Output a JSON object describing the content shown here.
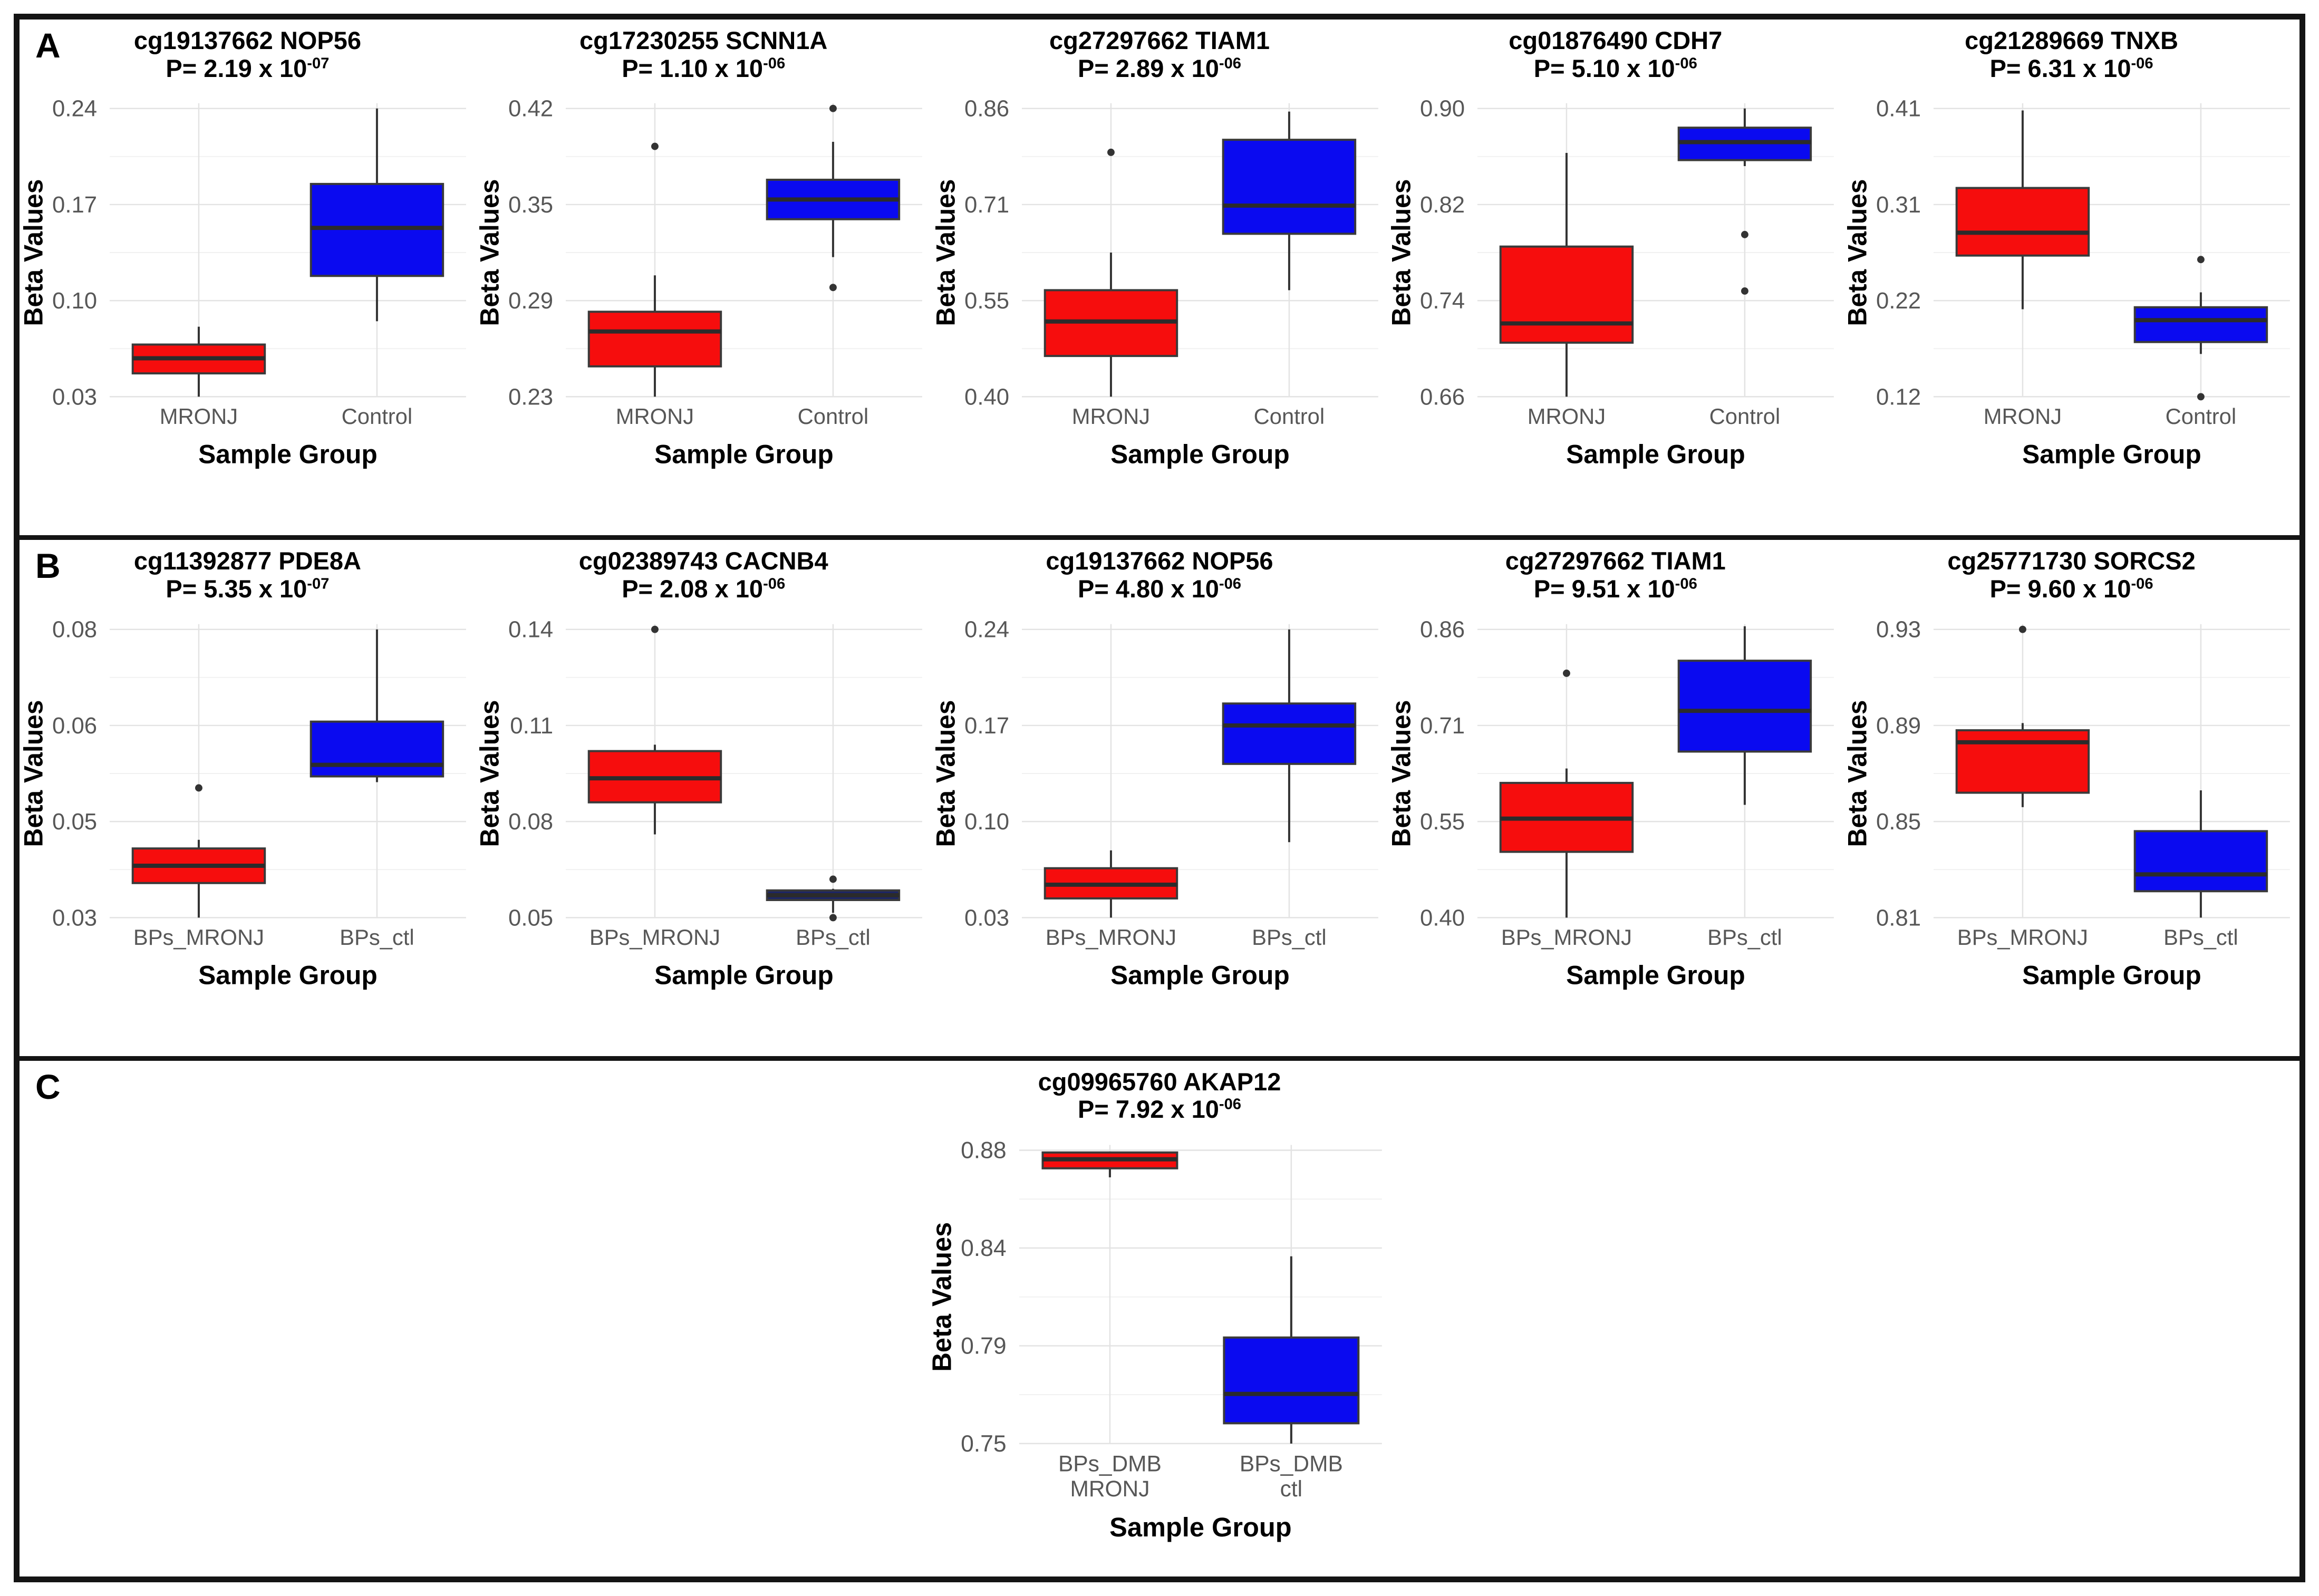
{
  "figure": {
    "panels": [
      {
        "label": "A"
      },
      {
        "label": "B"
      },
      {
        "label": "C"
      }
    ]
  },
  "colors": {
    "mronj_red": "#f60d0d",
    "control_blue": "#0a0af0",
    "navy_flat": "#1c2566",
    "box_border": "#3a3a3a",
    "median": "#2b2b2b",
    "whisker": "#333333",
    "outlier": "#333333",
    "grid_major": "#e3e3e3",
    "grid_minor": "#f1f1f1",
    "tick_text": "#575757",
    "axis_title_text": "#000000"
  },
  "chart_data": [
    {
      "panel": "A",
      "type": "boxplot",
      "title": "cg19137662 NOP56",
      "p_label": "P= 2.19 x 10",
      "p_exponent": "-07",
      "ylabel": "Beta Values",
      "xlabel": "Sample Group",
      "ylim": [
        0.03,
        0.24
      ],
      "ytick_labels": [
        "0.03",
        "0.10",
        "0.17",
        "0.24"
      ],
      "grid": true,
      "legend": "none",
      "groups": [
        {
          "label_lines": [
            "MRONJ"
          ],
          "color_key": "mronj_red",
          "stats": {
            "whisker_low": 0.03,
            "q1": 0.047,
            "median": 0.058,
            "q3": 0.068,
            "whisker_high": 0.081
          },
          "outliers": []
        },
        {
          "label_lines": [
            "Control"
          ],
          "color_key": "control_blue",
          "stats": {
            "whisker_low": 0.085,
            "q1": 0.118,
            "median": 0.153,
            "q3": 0.185,
            "whisker_high": 0.24
          },
          "outliers": []
        }
      ]
    },
    {
      "panel": "A",
      "type": "boxplot",
      "title": "cg17230255 SCNN1A",
      "p_label": "P= 1.10 x 10",
      "p_exponent": "-06",
      "ylabel": "Beta Values",
      "xlabel": "Sample Group",
      "ylim": [
        0.23,
        0.42
      ],
      "ytick_labels": [
        "0.23",
        "0.29",
        "0.35",
        "0.42"
      ],
      "grid": true,
      "legend": "none",
      "groups": [
        {
          "label_lines": [
            "MRONJ"
          ],
          "color_key": "mronj_red",
          "stats": {
            "whisker_low": 0.23,
            "q1": 0.25,
            "median": 0.273,
            "q3": 0.286,
            "whisker_high": 0.31
          },
          "outliers": [
            0.395
          ]
        },
        {
          "label_lines": [
            "Control"
          ],
          "color_key": "control_blue",
          "stats": {
            "whisker_low": 0.322,
            "q1": 0.347,
            "median": 0.36,
            "q3": 0.373,
            "whisker_high": 0.398
          },
          "outliers": [
            0.42,
            0.302
          ]
        }
      ]
    },
    {
      "panel": "A",
      "type": "boxplot",
      "title": "cg27297662 TIAM1",
      "p_label": "P= 2.89 x 10",
      "p_exponent": "-06",
      "ylabel": "Beta Values",
      "xlabel": "Sample Group",
      "ylim": [
        0.4,
        0.86
      ],
      "ytick_labels": [
        "0.40",
        "0.55",
        "0.71",
        "0.86"
      ],
      "grid": true,
      "legend": "none",
      "groups": [
        {
          "label_lines": [
            "MRONJ"
          ],
          "color_key": "mronj_red",
          "stats": {
            "whisker_low": 0.4,
            "q1": 0.465,
            "median": 0.52,
            "q3": 0.57,
            "whisker_high": 0.63
          },
          "outliers": [
            0.79
          ]
        },
        {
          "label_lines": [
            "Control"
          ],
          "color_key": "control_blue",
          "stats": {
            "whisker_low": 0.57,
            "q1": 0.66,
            "median": 0.705,
            "q3": 0.81,
            "whisker_high": 0.855
          },
          "outliers": []
        }
      ]
    },
    {
      "panel": "A",
      "type": "boxplot",
      "title": "cg01876490 CDH7",
      "p_label": "P= 5.10 x 10",
      "p_exponent": "-06",
      "ylabel": "Beta Values",
      "xlabel": "Sample Group",
      "ylim": [
        0.66,
        0.9
      ],
      "ytick_labels": [
        "0.66",
        "0.74",
        "0.82",
        "0.90"
      ],
      "grid": true,
      "legend": "none",
      "groups": [
        {
          "label_lines": [
            "MRONJ"
          ],
          "color_key": "mronj_red",
          "stats": {
            "whisker_low": 0.66,
            "q1": 0.705,
            "median": 0.721,
            "q3": 0.785,
            "whisker_high": 0.863
          },
          "outliers": []
        },
        {
          "label_lines": [
            "Control"
          ],
          "color_key": "control_blue",
          "stats": {
            "whisker_low": 0.852,
            "q1": 0.857,
            "median": 0.872,
            "q3": 0.884,
            "whisker_high": 0.9
          },
          "outliers": [
            0.795,
            0.748
          ]
        }
      ]
    },
    {
      "panel": "A",
      "type": "boxplot",
      "title": "cg21289669 TNXB",
      "p_label": "P= 6.31 x 10",
      "p_exponent": "-06",
      "ylabel": "Beta Values",
      "xlabel": "Sample Group",
      "ylim": [
        0.12,
        0.41
      ],
      "ytick_labels": [
        "0.12",
        "0.22",
        "0.31",
        "0.41"
      ],
      "grid": true,
      "legend": "none",
      "groups": [
        {
          "label_lines": [
            "MRONJ"
          ],
          "color_key": "mronj_red",
          "stats": {
            "whisker_low": 0.208,
            "q1": 0.262,
            "median": 0.285,
            "q3": 0.33,
            "whisker_high": 0.408
          },
          "outliers": []
        },
        {
          "label_lines": [
            "Control"
          ],
          "color_key": "control_blue",
          "stats": {
            "whisker_low": 0.163,
            "q1": 0.175,
            "median": 0.197,
            "q3": 0.21,
            "whisker_high": 0.225
          },
          "outliers": [
            0.258,
            0.12
          ]
        }
      ]
    },
    {
      "panel": "B",
      "type": "boxplot",
      "title": "cg11392877 PDE8A",
      "p_label": "P= 5.35 x 10",
      "p_exponent": "-07",
      "ylabel": "Beta Values",
      "xlabel": "Sample Group",
      "ylim": [
        0.03,
        0.08
      ],
      "ytick_labels": [
        "0.03",
        "0.05",
        "0.06",
        "0.08"
      ],
      "grid": true,
      "legend": "none",
      "groups": [
        {
          "label_lines": [
            "BPs_MRONJ"
          ],
          "color_key": "mronj_red",
          "stats": {
            "whisker_low": 0.03,
            "q1": 0.036,
            "median": 0.039,
            "q3": 0.042,
            "whisker_high": 0.0435
          },
          "outliers": [
            0.0525
          ]
        },
        {
          "label_lines": [
            "BPs_ctl"
          ],
          "color_key": "control_blue",
          "stats": {
            "whisker_low": 0.0535,
            "q1": 0.0545,
            "median": 0.0565,
            "q3": 0.064,
            "whisker_high": 0.08
          },
          "outliers": []
        }
      ]
    },
    {
      "panel": "B",
      "type": "boxplot",
      "title": "cg02389743 CACNB4",
      "p_label": "P= 2.08 x 10",
      "p_exponent": "-06",
      "ylabel": "Beta Values",
      "xlabel": "Sample Group",
      "ylim": [
        0.05,
        0.14
      ],
      "ytick_labels": [
        "0.05",
        "0.08",
        "0.11",
        "0.14"
      ],
      "grid": true,
      "legend": "none",
      "groups": [
        {
          "label_lines": [
            "BPs_MRONJ"
          ],
          "color_key": "mronj_red",
          "stats": {
            "whisker_low": 0.076,
            "q1": 0.086,
            "median": 0.0935,
            "q3": 0.102,
            "whisker_high": 0.104
          },
          "outliers": [
            0.14
          ]
        },
        {
          "label_lines": [
            "BPs_ctl"
          ],
          "color_key": "navy_flat",
          "stats": {
            "whisker_low": 0.0515,
            "q1": 0.0555,
            "median": 0.057,
            "q3": 0.0585,
            "whisker_high": 0.059
          },
          "outliers": [
            0.062,
            0.05
          ]
        }
      ]
    },
    {
      "panel": "B",
      "type": "boxplot",
      "title": "cg19137662 NOP56",
      "p_label": "P= 4.80 x 10",
      "p_exponent": "-06",
      "ylabel": "Beta Values",
      "xlabel": "Sample Group",
      "ylim": [
        0.03,
        0.24
      ],
      "ytick_labels": [
        "0.03",
        "0.10",
        "0.17",
        "0.24"
      ],
      "grid": true,
      "legend": "none",
      "groups": [
        {
          "label_lines": [
            "BPs_MRONJ"
          ],
          "color_key": "mronj_red",
          "stats": {
            "whisker_low": 0.03,
            "q1": 0.044,
            "median": 0.054,
            "q3": 0.066,
            "whisker_high": 0.079
          },
          "outliers": []
        },
        {
          "label_lines": [
            "BPs_ctl"
          ],
          "color_key": "control_blue",
          "stats": {
            "whisker_low": 0.085,
            "q1": 0.142,
            "median": 0.17,
            "q3": 0.186,
            "whisker_high": 0.24
          },
          "outliers": []
        }
      ]
    },
    {
      "panel": "B",
      "type": "boxplot",
      "title": "cg27297662 TIAM1",
      "p_label": "P= 9.51 x 10",
      "p_exponent": "-06",
      "ylabel": "Beta Values",
      "xlabel": "Sample Group",
      "ylim": [
        0.4,
        0.86
      ],
      "ytick_labels": [
        "0.40",
        "0.55",
        "0.71",
        "0.86"
      ],
      "grid": true,
      "legend": "none",
      "groups": [
        {
          "label_lines": [
            "BPs_MRONJ"
          ],
          "color_key": "mronj_red",
          "stats": {
            "whisker_low": 0.4,
            "q1": 0.505,
            "median": 0.558,
            "q3": 0.615,
            "whisker_high": 0.638
          },
          "outliers": [
            0.79
          ]
        },
        {
          "label_lines": [
            "BPs_ctl"
          ],
          "color_key": "control_blue",
          "stats": {
            "whisker_low": 0.58,
            "q1": 0.665,
            "median": 0.73,
            "q3": 0.81,
            "whisker_high": 0.865
          },
          "outliers": []
        }
      ]
    },
    {
      "panel": "B",
      "type": "boxplot",
      "title": "cg25771730 SORCS2",
      "p_label": "P= 9.60 x 10",
      "p_exponent": "-06",
      "ylabel": "Beta Values",
      "xlabel": "Sample Group",
      "ylim": [
        0.81,
        0.93
      ],
      "ytick_labels": [
        "0.81",
        "0.85",
        "0.89",
        "0.93"
      ],
      "grid": true,
      "legend": "none",
      "groups": [
        {
          "label_lines": [
            "BPs_MRONJ"
          ],
          "color_key": "mronj_red",
          "stats": {
            "whisker_low": 0.856,
            "q1": 0.862,
            "median": 0.883,
            "q3": 0.888,
            "whisker_high": 0.891
          },
          "outliers": [
            0.93
          ]
        },
        {
          "label_lines": [
            "BPs_ctl"
          ],
          "color_key": "control_blue",
          "stats": {
            "whisker_low": 0.81,
            "q1": 0.821,
            "median": 0.828,
            "q3": 0.846,
            "whisker_high": 0.863
          },
          "outliers": []
        }
      ]
    },
    {
      "panel": "C",
      "type": "boxplot",
      "title": "cg09965760 AKAP12",
      "p_label": "P= 7.92 x 10",
      "p_exponent": "-06",
      "ylabel": "Beta Values",
      "xlabel": "Sample Group",
      "ylim": [
        0.75,
        0.88
      ],
      "ytick_labels": [
        "0.75",
        "0.79",
        "0.84",
        "0.88"
      ],
      "grid": true,
      "legend": "none",
      "groups": [
        {
          "label_lines": [
            "BPs_DMB",
            "MRONJ"
          ],
          "color_key": "mronj_red",
          "stats": {
            "whisker_low": 0.868,
            "q1": 0.872,
            "median": 0.876,
            "q3": 0.879,
            "whisker_high": 0.879
          },
          "outliers": []
        },
        {
          "label_lines": [
            "BPs_DMB",
            "ctl"
          ],
          "color_key": "control_blue",
          "stats": {
            "whisker_low": 0.75,
            "q1": 0.759,
            "median": 0.772,
            "q3": 0.797,
            "whisker_high": 0.833
          },
          "outliers": []
        }
      ]
    }
  ]
}
